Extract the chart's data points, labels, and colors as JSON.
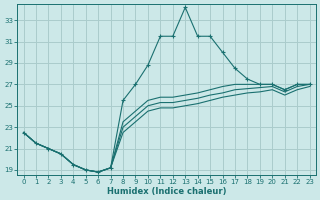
{
  "xlabel": "Humidex (Indice chaleur)",
  "bg_color": "#cce8e8",
  "grid_color": "#aacccc",
  "line_color": "#1a7070",
  "xlim": [
    -0.5,
    23.5
  ],
  "ylim": [
    18.5,
    34.5
  ],
  "xticks": [
    0,
    1,
    2,
    3,
    4,
    5,
    6,
    7,
    8,
    9,
    10,
    11,
    12,
    13,
    14,
    15,
    16,
    17,
    18,
    19,
    20,
    21,
    22,
    23
  ],
  "yticks": [
    19,
    21,
    23,
    25,
    27,
    29,
    31,
    33
  ],
  "main_line": {
    "x": [
      0,
      1,
      2,
      3,
      4,
      5,
      6,
      7,
      8,
      9,
      10,
      11,
      12,
      13,
      14,
      15,
      16,
      17,
      18,
      19,
      20,
      21,
      22,
      23
    ],
    "y": [
      22.5,
      21.5,
      21.0,
      20.5,
      19.5,
      19.0,
      18.8,
      19.2,
      25.5,
      27.0,
      28.8,
      31.5,
      31.5,
      34.2,
      31.5,
      31.5,
      30.0,
      28.5,
      27.5,
      27.0,
      27.0,
      26.5,
      27.0,
      27.0
    ]
  },
  "extra_lines": [
    {
      "x": [
        0,
        1,
        2,
        3,
        4,
        5,
        6,
        7,
        8,
        9,
        10,
        11,
        12,
        13,
        14,
        15,
        16,
        17,
        18,
        19,
        20,
        21,
        22,
        23
      ],
      "y": [
        22.5,
        21.5,
        21.0,
        20.5,
        19.5,
        19.0,
        18.8,
        19.2,
        23.5,
        24.5,
        25.5,
        25.8,
        25.8,
        26.0,
        26.2,
        26.5,
        26.8,
        27.0,
        27.0,
        27.0,
        27.0,
        26.5,
        27.0,
        27.0
      ]
    },
    {
      "x": [
        0,
        1,
        2,
        3,
        4,
        5,
        6,
        7,
        8,
        9,
        10,
        11,
        12,
        13,
        14,
        15,
        16,
        17,
        18,
        19,
        20,
        21,
        22,
        23
      ],
      "y": [
        22.5,
        21.5,
        21.0,
        20.5,
        19.5,
        19.0,
        18.8,
        19.2,
        23.0,
        24.0,
        25.0,
        25.3,
        25.3,
        25.5,
        25.7,
        26.0,
        26.2,
        26.5,
        26.6,
        26.7,
        26.8,
        26.3,
        26.8,
        27.0
      ]
    },
    {
      "x": [
        0,
        1,
        2,
        3,
        4,
        5,
        6,
        7,
        8,
        9,
        10,
        11,
        12,
        13,
        14,
        15,
        16,
        17,
        18,
        19,
        20,
        21,
        22,
        23
      ],
      "y": [
        22.5,
        21.5,
        21.0,
        20.5,
        19.5,
        19.0,
        18.8,
        19.2,
        22.5,
        23.5,
        24.5,
        24.8,
        24.8,
        25.0,
        25.2,
        25.5,
        25.8,
        26.0,
        26.2,
        26.3,
        26.5,
        26.0,
        26.5,
        26.8
      ]
    }
  ]
}
